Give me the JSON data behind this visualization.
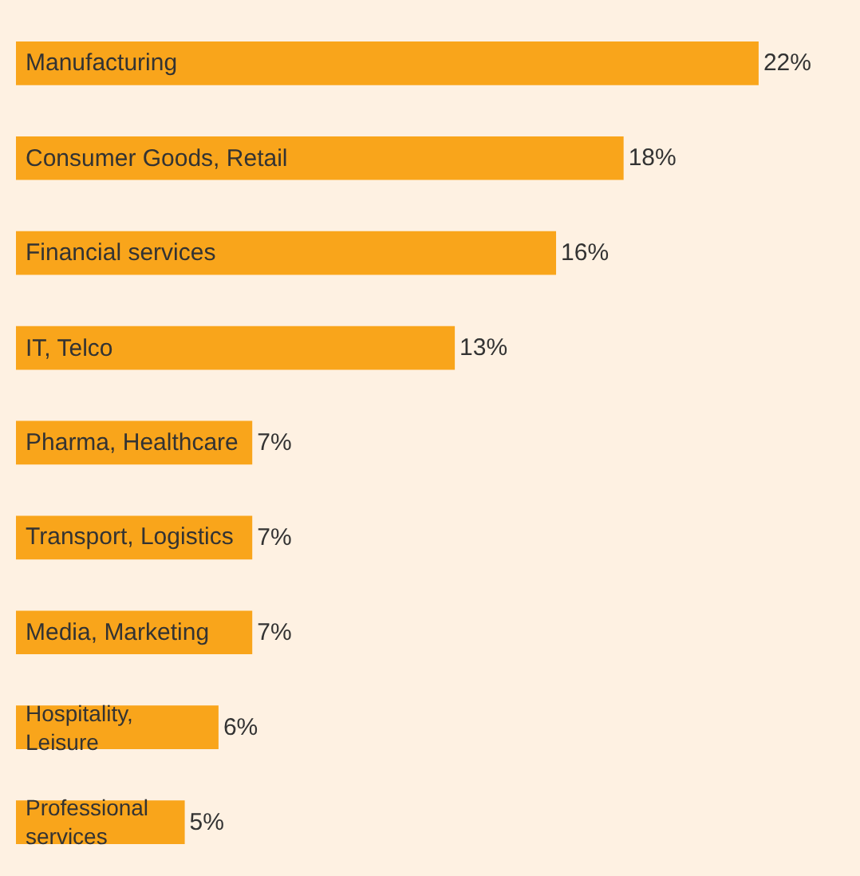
{
  "chart_data": {
    "type": "bar",
    "orientation": "horizontal",
    "categories": [
      "Manufacturing",
      "Consumer Goods, Retail",
      "Financial services",
      "IT, Telco",
      "Pharma, Healthcare",
      "Transport, Logistics",
      "Media, Marketing",
      "Hospitality, Leisure",
      "Professional services"
    ],
    "values": [
      22,
      18,
      16,
      13,
      7,
      7,
      7,
      6,
      5
    ],
    "value_labels": [
      "22%",
      "18%",
      "16%",
      "13%",
      "7%",
      "7%",
      "7%",
      "6%",
      "5%"
    ],
    "color": "#f9a51b"
  }
}
